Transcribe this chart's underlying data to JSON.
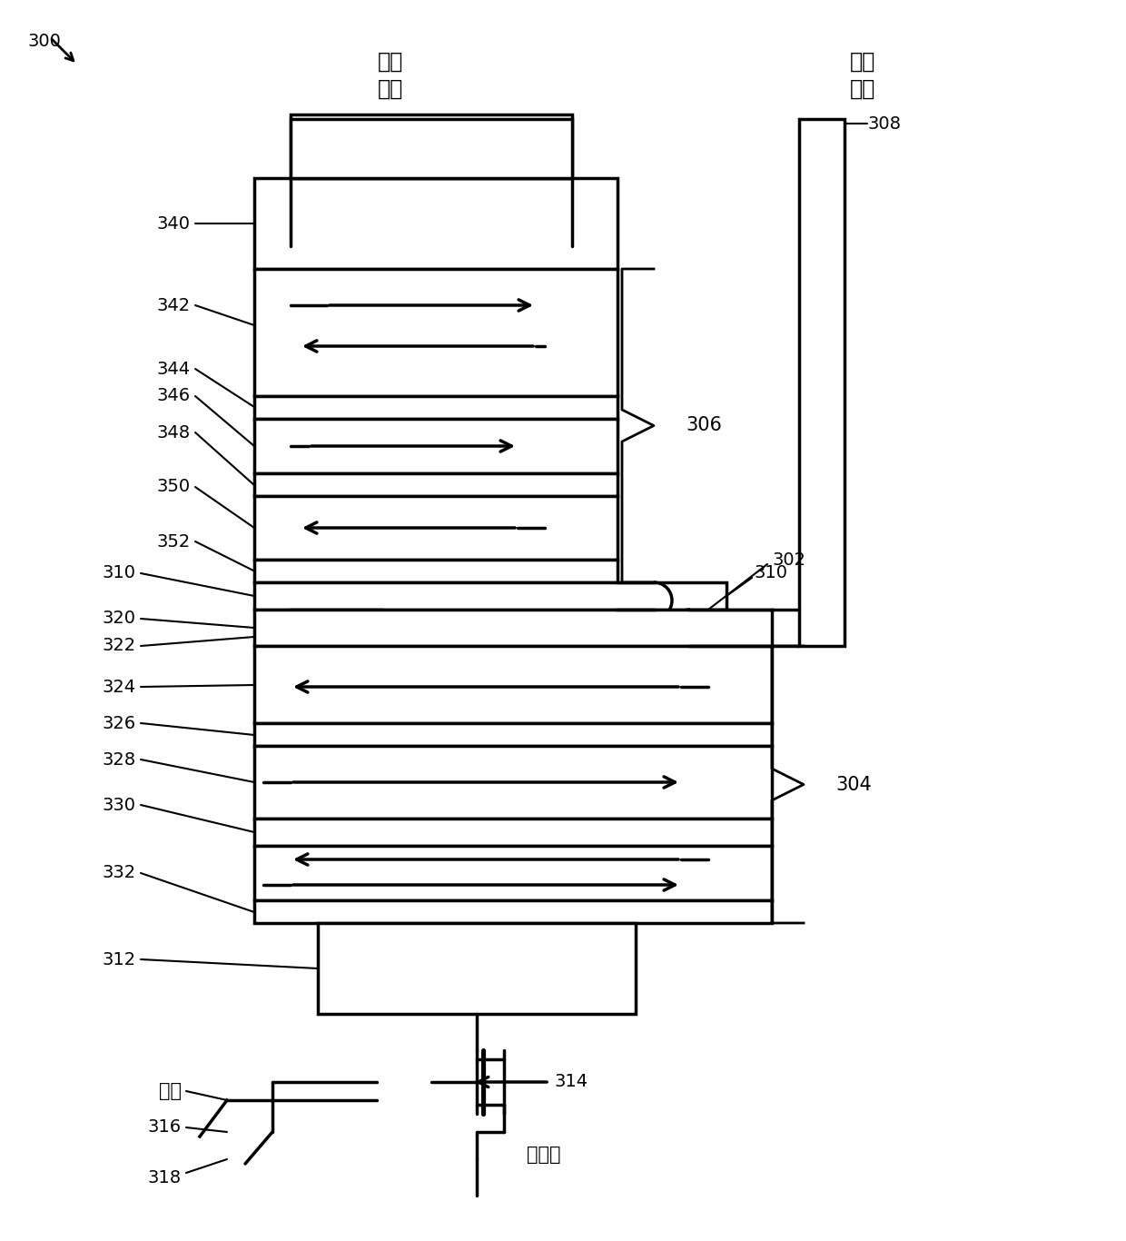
{
  "bg_color": "#ffffff",
  "line_color": "#000000",
  "line_width": 2.5,
  "fig_width": 12.4,
  "fig_height": 13.66,
  "read_bl_label": "位线\n读取",
  "write_bl_label": "位线\n写入",
  "wordline_label": "字线",
  "sourceline_label": "源极线",
  "ref_number": "300",
  "label_308": "308",
  "label_302": "302",
  "label_306": "306",
  "label_304": "304",
  "label_340": "340",
  "label_342": "342",
  "label_344": "344",
  "label_346": "346",
  "label_348": "348",
  "label_350": "350",
  "label_352": "352",
  "label_310": "310",
  "label_320": "320",
  "label_322": "322",
  "label_324": "324",
  "label_326": "326",
  "label_328": "328",
  "label_330": "330",
  "label_332": "332",
  "label_312": "312",
  "label_314": "314",
  "label_316": "316",
  "label_318": "318"
}
